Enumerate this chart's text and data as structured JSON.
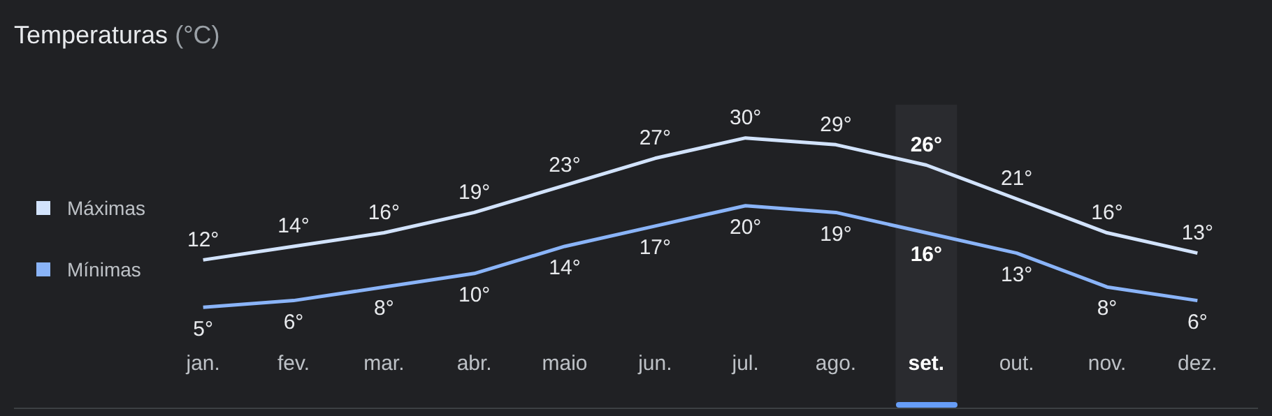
{
  "chart_data": {
    "type": "line",
    "title": "Temperaturas",
    "subtitle": "(°C)",
    "categories": [
      "jan.",
      "fev.",
      "mar.",
      "abr.",
      "maio",
      "jun.",
      "jul.",
      "ago.",
      "set.",
      "out.",
      "nov.",
      "dez."
    ],
    "series": [
      {
        "name": "Máximas",
        "color": "#d2e3fc",
        "values": [
          12,
          14,
          16,
          19,
          23,
          27,
          30,
          29,
          26,
          21,
          16,
          13
        ],
        "value_labels": [
          "12°",
          "14°",
          "16°",
          "19°",
          "23°",
          "27°",
          "30°",
          "29°",
          "26°",
          "21°",
          "16°",
          "13°"
        ]
      },
      {
        "name": "Mínimas",
        "color": "#8ab4f8",
        "values": [
          5,
          6,
          8,
          10,
          14,
          17,
          20,
          19,
          16,
          13,
          8,
          6
        ],
        "value_labels": [
          "5°",
          "6°",
          "8°",
          "10°",
          "14°",
          "17°",
          "20°",
          "19°",
          "16°",
          "13°",
          "8°",
          "6°"
        ]
      }
    ],
    "bands": [
      {
        "axis": "x",
        "from": "set.",
        "to": "set.",
        "color": "#2a2b2f"
      }
    ],
    "legend": "left",
    "tick_labels": "x",
    "marker": "none",
    "line_style": "solid"
  }
}
